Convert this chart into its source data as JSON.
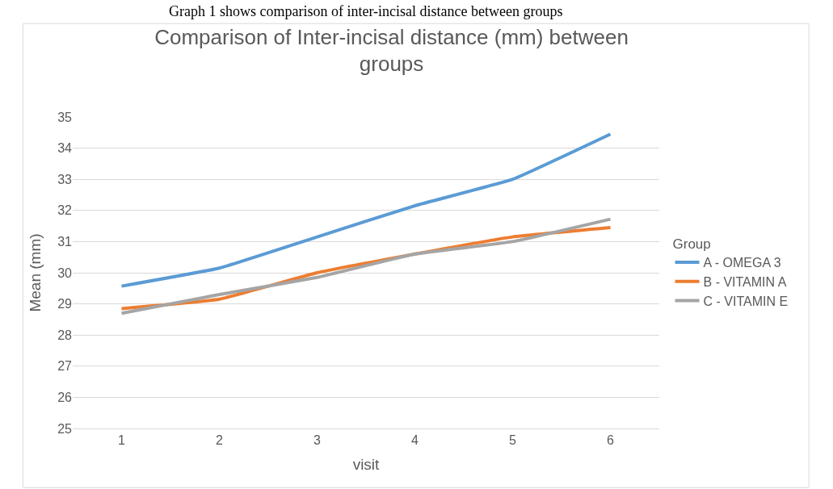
{
  "chart_data": {
    "type": "line",
    "title": "Comparison of Inter-incisal distance (mm) between groups",
    "xlabel": "visit",
    "ylabel": "Mean (mm)",
    "legend_title": "Group",
    "annotations": [
      "Graph 1 shows comparison of inter-incisal distance between groups"
    ],
    "categories": [
      "1",
      "2",
      "3",
      "4",
      "5",
      "6"
    ],
    "series": [
      {
        "name": "A - OMEGA 3",
        "color": "#5b9bd5",
        "values": [
          29.57,
          30.15,
          31.15,
          32.15,
          33.0,
          34.45
        ]
      },
      {
        "name": "B - VITAMIN A",
        "color": "#ed7d31",
        "values": [
          28.85,
          29.15,
          30.0,
          30.6,
          31.15,
          31.45
        ]
      },
      {
        "name": "C - VITAMIN E",
        "color": "#a5a5a5",
        "values": [
          28.7,
          29.3,
          29.85,
          30.6,
          31.0,
          31.72
        ]
      }
    ],
    "ylim": [
      25,
      35
    ],
    "yticks": [
      25,
      26,
      27,
      28,
      29,
      30,
      31,
      32,
      33,
      34,
      35
    ],
    "grid": "y",
    "legend": "right",
    "marker": "none",
    "line_style": "solid"
  }
}
